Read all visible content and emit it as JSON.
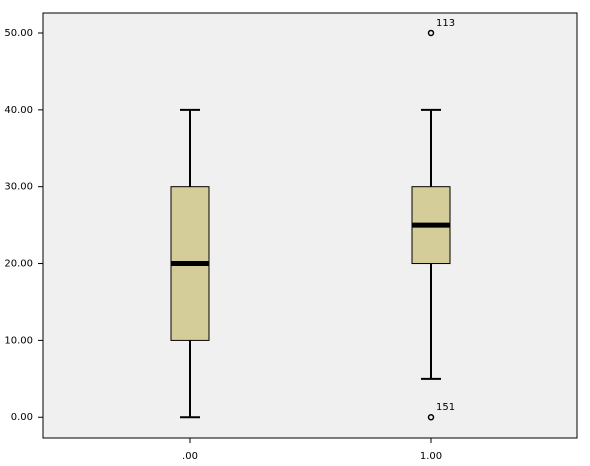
{
  "chart_data": {
    "type": "box",
    "categories": [
      ".00",
      "1.00"
    ],
    "boxes": [
      {
        "min": 0,
        "q1": 10,
        "median": 20,
        "q3": 30,
        "max": 40,
        "outliers": []
      },
      {
        "min": 5,
        "q1": 20,
        "median": 25,
        "q3": 30,
        "max": 40,
        "outliers": [
          {
            "value": 50,
            "label": "113"
          },
          {
            "value": 0,
            "label": "151"
          }
        ]
      }
    ],
    "color": "#d4cd9a",
    "ylim": [
      -2.7,
      52.6
    ],
    "yticks": [
      {
        "value": 0,
        "label": "0.00"
      },
      {
        "value": 10,
        "label": "10.00"
      },
      {
        "value": 20,
        "label": "20.00"
      },
      {
        "value": 30,
        "label": "30.00"
      },
      {
        "value": 40,
        "label": "40.00"
      },
      {
        "value": 50,
        "label": "50.00"
      }
    ]
  }
}
